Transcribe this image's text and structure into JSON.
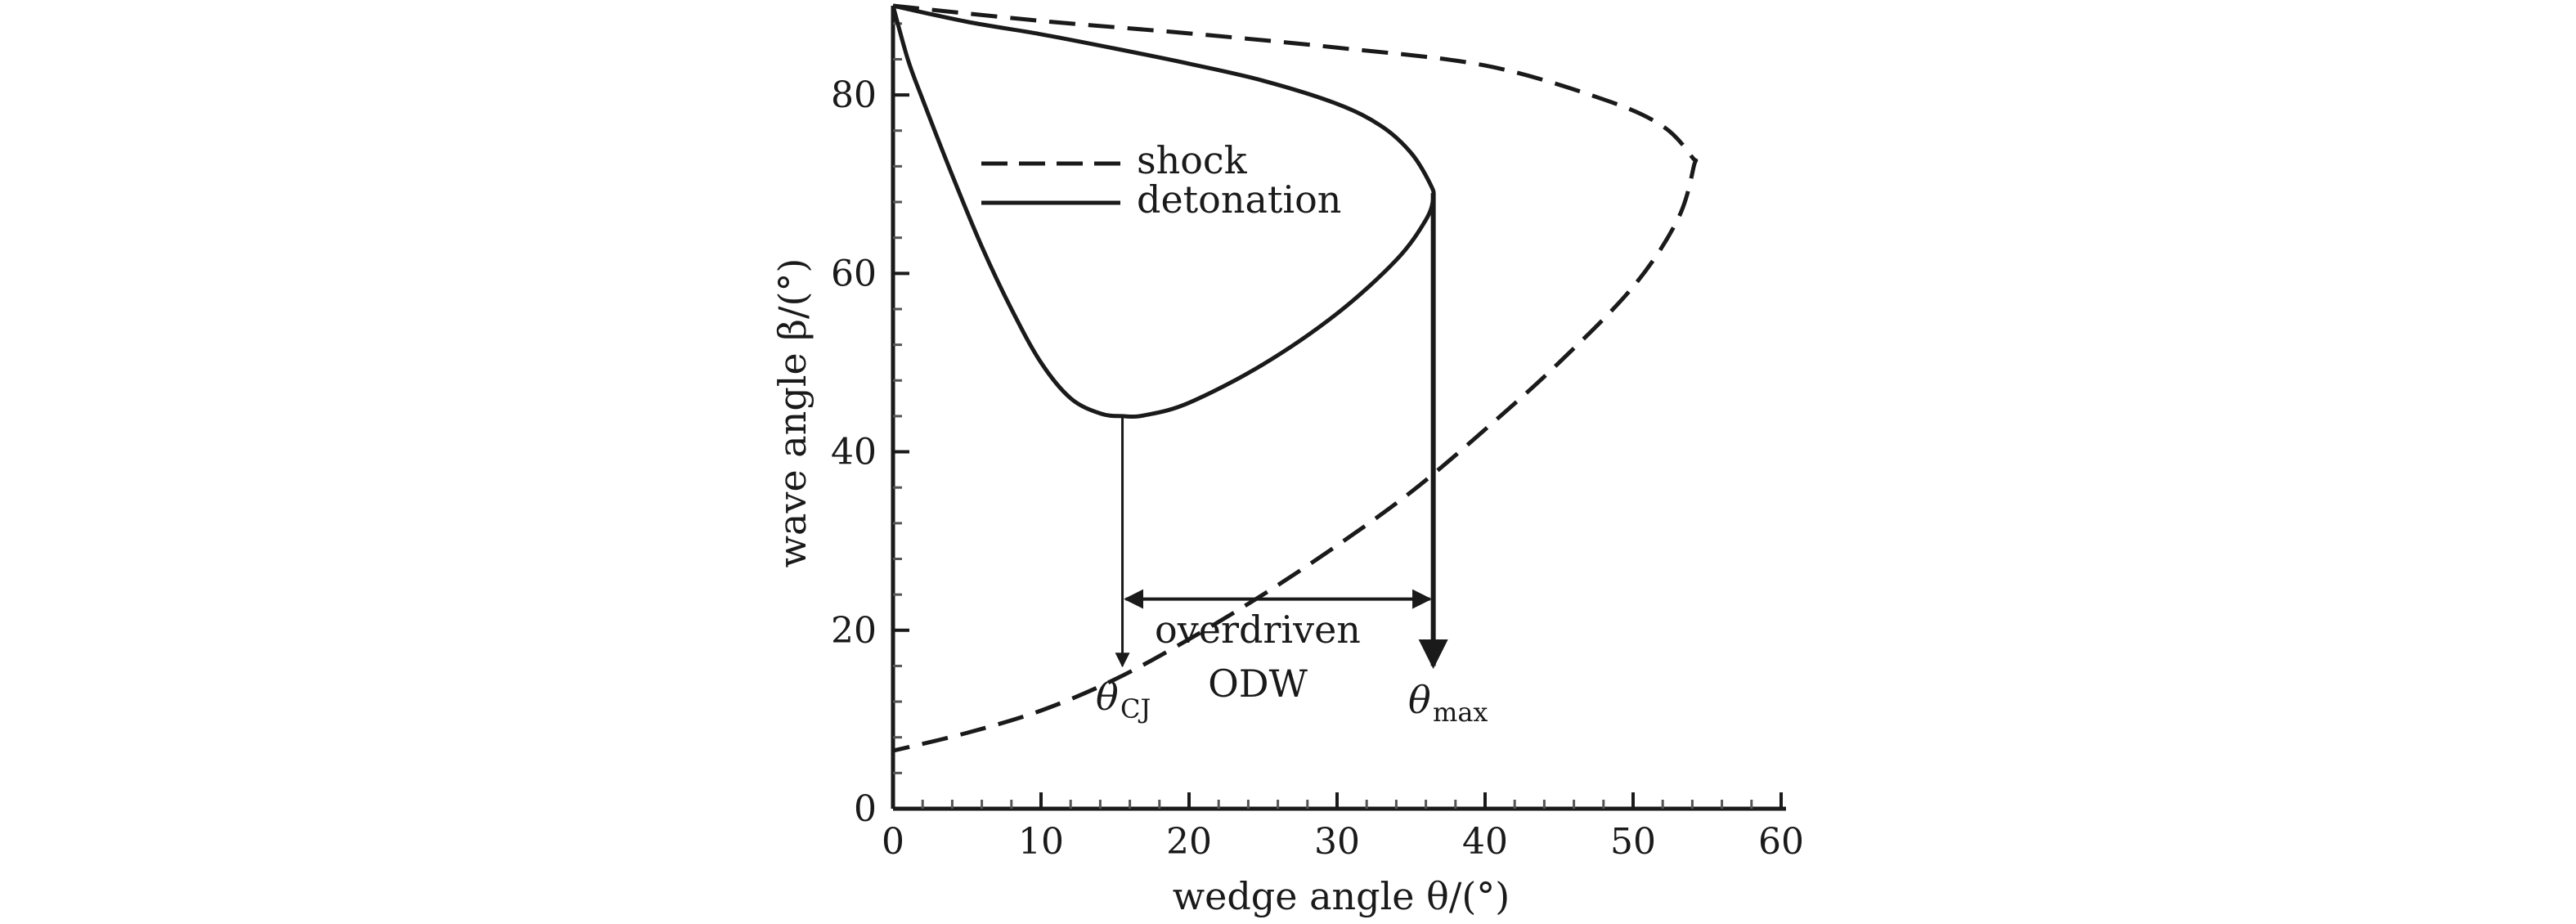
{
  "chart_data": {
    "type": "line",
    "xlabel": "wedge angle θ/(°)",
    "ylabel": "wave angle β/(°)",
    "xlim": [
      0,
      60
    ],
    "ylim": [
      0,
      90
    ],
    "xticks": [
      0,
      10,
      20,
      30,
      40,
      50,
      60
    ],
    "yticks": [
      0,
      20,
      40,
      60,
      80
    ],
    "grid": false,
    "legend": {
      "position": "top-left-inside"
    },
    "series": [
      {
        "name": "shock",
        "style": "dashed",
        "color": "#1a1a1a",
        "points": [
          [
            0,
            90
          ],
          [
            10,
            88.3
          ],
          [
            20,
            86.9
          ],
          [
            30,
            85.3
          ],
          [
            40,
            83.3
          ],
          [
            48,
            79.5
          ],
          [
            52,
            76.5
          ],
          [
            54,
            73
          ],
          [
            54.1,
            72
          ],
          [
            53,
            66
          ],
          [
            50,
            58.5
          ],
          [
            45,
            50
          ],
          [
            40,
            42.5
          ],
          [
            35,
            35.5
          ],
          [
            30,
            29.5
          ],
          [
            25,
            24
          ],
          [
            20,
            19
          ],
          [
            15,
            14.5
          ],
          [
            10,
            11
          ],
          [
            5,
            8.5
          ],
          [
            0,
            6.5
          ]
        ]
      },
      {
        "name": "detonation",
        "style": "solid",
        "color": "#1a1a1a",
        "points": [
          [
            0,
            90
          ],
          [
            5,
            88.2
          ],
          [
            10,
            86.8
          ],
          [
            15,
            85.2
          ],
          [
            20,
            83.5
          ],
          [
            25,
            81.6
          ],
          [
            30,
            79
          ],
          [
            33,
            76.5
          ],
          [
            35,
            73.5
          ],
          [
            36.3,
            70
          ],
          [
            36.5,
            68.5
          ],
          [
            36,
            66
          ],
          [
            34,
            61.5
          ],
          [
            30,
            55.5
          ],
          [
            25,
            49.8
          ],
          [
            20,
            45.5
          ],
          [
            17,
            44.1
          ],
          [
            15.5,
            44
          ],
          [
            14,
            44.3
          ],
          [
            12,
            46
          ],
          [
            10,
            50
          ],
          [
            8,
            56
          ],
          [
            6,
            63
          ],
          [
            4,
            71
          ],
          [
            2,
            79.5
          ],
          [
            1,
            84
          ],
          [
            0,
            90
          ]
        ]
      }
    ],
    "annotations": {
      "theta_cj": {
        "x": 15.5,
        "y_from": 44,
        "y_to": 16,
        "label": "θ",
        "sub": "CJ"
      },
      "theta_max": {
        "x": 36.5,
        "y_from": 69,
        "y_to": 16,
        "label": "θ",
        "sub": "max"
      },
      "range_arrow": {
        "x_from": 15.5,
        "x_to": 36.5,
        "y": 23.5
      },
      "range_label_1": "overdriven",
      "range_label_2": "ODW"
    }
  }
}
